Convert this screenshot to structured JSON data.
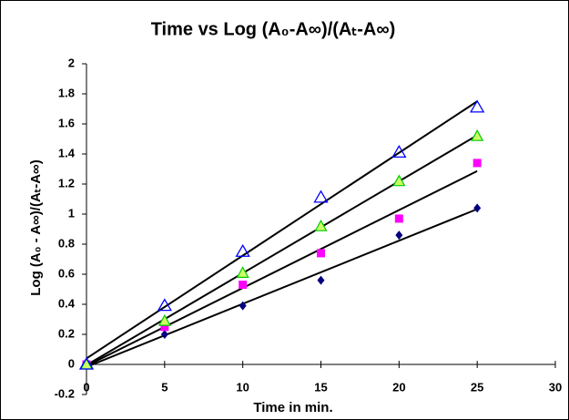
{
  "chart_data": {
    "type": "scatter",
    "title": "Time vs Log (A₀-A∞)/(Aₜ-A∞)",
    "x_label": "Time in min.",
    "y_label": "Log (A₀ - A∞)/(Aₜ-A∞)",
    "x": [
      0,
      5,
      10,
      15,
      20,
      25
    ],
    "series": [
      {
        "color": "#000080",
        "marker": "diamond",
        "values": [
          0,
          0.2,
          0.39,
          0.56,
          0.86,
          1.04
        ]
      },
      {
        "color": "#ff00ff",
        "marker": "square",
        "values": [
          0,
          0.25,
          0.53,
          0.74,
          0.97,
          1.34
        ]
      },
      {
        "color": "#00cc00",
        "marker": "filled-triangle",
        "values": [
          0,
          0.29,
          0.61,
          0.92,
          1.22,
          1.52
        ]
      },
      {
        "color": "#0000ff",
        "marker": "open-triangle",
        "values": [
          0,
          0.39,
          0.75,
          1.11,
          1.41,
          1.71
        ]
      }
    ],
    "trendline": true,
    "xlim": [
      0,
      30
    ],
    "xticks": [
      0,
      5,
      10,
      15,
      20,
      25,
      30
    ],
    "ylim": [
      -0.2,
      2
    ],
    "yticks": [
      -0.2,
      0,
      0.2,
      0.4,
      0.6,
      0.8,
      1,
      1.2,
      1.4,
      1.6,
      1.8,
      2
    ],
    "grid": false
  }
}
